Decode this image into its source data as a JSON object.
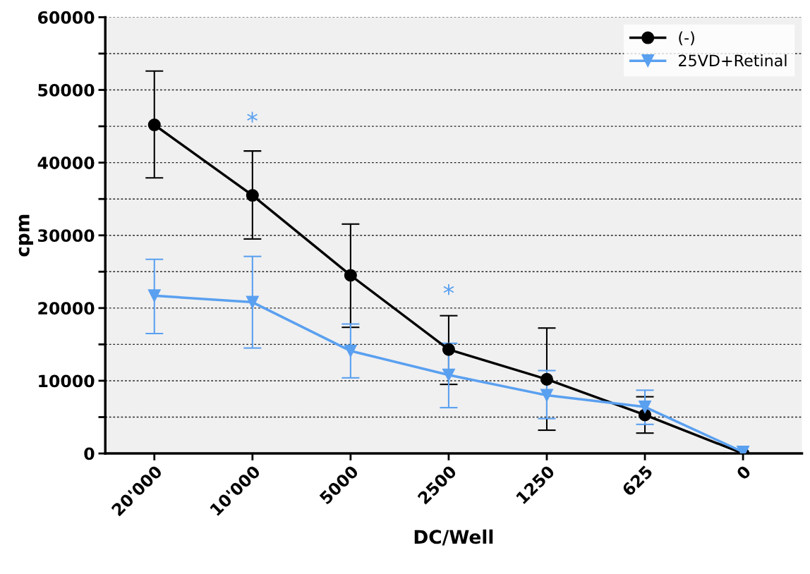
{
  "chart_data": {
    "type": "line",
    "xlabel": "DC/Well",
    "ylabel": "cpm",
    "categories": [
      "20'000",
      "10'000",
      "5000",
      "2500",
      "1250",
      "625",
      "0"
    ],
    "series": [
      {
        "name": "(-)",
        "color": "#000000",
        "marker": "circle",
        "values": [
          45200,
          35500,
          24500,
          14300,
          10200,
          5300,
          0
        ],
        "errors": [
          [
            37900,
            52600
          ],
          [
            29500,
            41600
          ],
          [
            17350,
            31550
          ],
          [
            9500,
            18950
          ],
          [
            3200,
            17250
          ],
          [
            2800,
            7800
          ],
          null
        ]
      },
      {
        "name": "25VD+Retinal",
        "color": "#5aa0f0",
        "marker": "triangle",
        "values": [
          21700,
          20800,
          14100,
          10800,
          8000,
          6400,
          200
        ],
        "errors": [
          [
            16500,
            26700
          ],
          [
            14500,
            27100
          ],
          [
            10400,
            17800
          ],
          [
            6300,
            15150
          ],
          [
            4800,
            11400
          ],
          [
            4000,
            8700
          ],
          null
        ]
      }
    ],
    "annotations": [
      "*",
      "*"
    ],
    "ylim": [
      0,
      60000
    ],
    "yticks": [
      0,
      {
        "value": 5000,
        "label": null
      },
      10000,
      {
        "value": 15000,
        "label": null
      },
      20000,
      {
        "value": 25000,
        "label": null
      },
      30000,
      {
        "value": 35000,
        "label": null
      },
      40000,
      {
        "value": 45000,
        "label": null
      },
      50000,
      {
        "value": 55000,
        "label": null
      },
      60000
    ],
    "grid": "y",
    "legend": "top right",
    "line_style": "solid"
  }
}
